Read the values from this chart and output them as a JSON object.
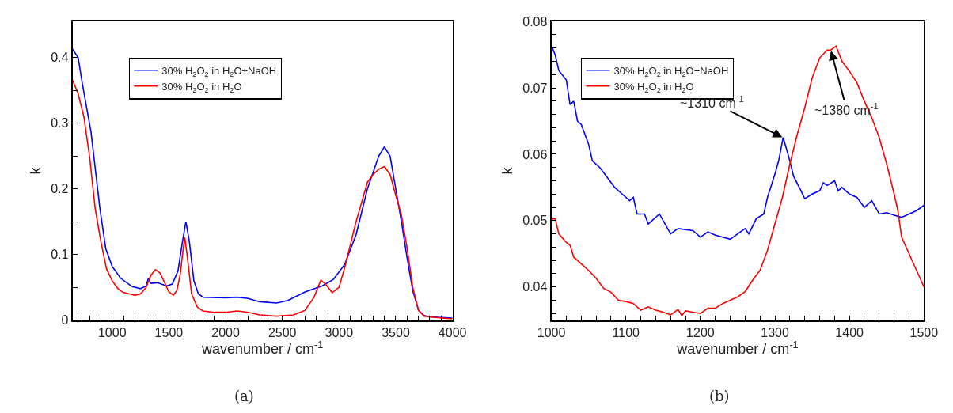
{
  "chart_data": [
    {
      "type": "line",
      "xlabel": "wavenumber / cm$^{-1}$",
      "ylabel": "k",
      "legend": "top",
      "xlim": [
        650,
        4000
      ],
      "ylim": [
        0,
        0.455
      ],
      "xticks": [
        {
          "value": 700,
          "label": null
        },
        {
          "value": 800,
          "label": null
        },
        {
          "value": 900,
          "label": null
        },
        1000,
        {
          "value": 1100,
          "label": null
        },
        {
          "value": 1200,
          "label": null
        },
        {
          "value": 1300,
          "label": null
        },
        {
          "value": 1400,
          "label": null
        },
        1500,
        {
          "value": 1600,
          "label": null
        },
        {
          "value": 1700,
          "label": null
        },
        {
          "value": 1800,
          "label": null
        },
        {
          "value": 1900,
          "label": null
        },
        2000,
        {
          "value": 2100,
          "label": null
        },
        {
          "value": 2200,
          "label": null
        },
        {
          "value": 2300,
          "label": null
        },
        {
          "value": 2400,
          "label": null
        },
        2500,
        {
          "value": 2600,
          "label": null
        },
        {
          "value": 2700,
          "label": null
        },
        {
          "value": 2800,
          "label": null
        },
        {
          "value": 2900,
          "label": null
        },
        3000,
        {
          "value": 3100,
          "label": null
        },
        {
          "value": 3200,
          "label": null
        },
        {
          "value": 3300,
          "label": null
        },
        {
          "value": 3400,
          "label": null
        },
        3500,
        {
          "value": 3600,
          "label": null
        },
        {
          "value": 3700,
          "label": null
        },
        {
          "value": 3800,
          "label": null
        },
        {
          "value": 3900,
          "label": null
        },
        4000
      ],
      "yticks": [
        0,
        {
          "value": 0.05,
          "label": null
        },
        0.1,
        {
          "value": 0.15,
          "label": null
        },
        0.2,
        {
          "value": 0.25,
          "label": null
        },
        0.3,
        {
          "value": 0.35,
          "label": null
        },
        0.4
      ],
      "annotations": [
        "(a)"
      ],
      "series": [
        {
          "name": "30% H$_{2}$O$_{2}$ in H$_{2}$O+NaOH",
          "color": "#0000ff",
          "x": [
            650,
            700,
            735,
            813,
            891,
            943,
            1000,
            1073,
            1177,
            1250,
            1300,
            1317,
            1340,
            1400,
            1480,
            1530,
            1580,
            1620,
            1650,
            1680,
            1720,
            1760,
            1800,
            2000,
            2100,
            2200,
            2300,
            2450,
            2550,
            2700,
            2850,
            2950,
            3050,
            3150,
            3250,
            3300,
            3350,
            3400,
            3450,
            3500,
            3550,
            3600,
            3650,
            3700,
            3750,
            3800,
            3900,
            4000
          ],
          "values": [
            0.413,
            0.4,
            0.362,
            0.287,
            0.171,
            0.109,
            0.082,
            0.064,
            0.051,
            0.048,
            0.052,
            0.063,
            0.056,
            0.057,
            0.052,
            0.055,
            0.075,
            0.12,
            0.15,
            0.12,
            0.06,
            0.04,
            0.035,
            0.034,
            0.035,
            0.033,
            0.028,
            0.026,
            0.03,
            0.043,
            0.052,
            0.062,
            0.085,
            0.13,
            0.2,
            0.225,
            0.25,
            0.264,
            0.25,
            0.2,
            0.15,
            0.095,
            0.045,
            0.015,
            0.007,
            0.005,
            0.004,
            0.003
          ]
        },
        {
          "name": "30% H$_{2}$O$_{2}$ in H$_{2}$O",
          "color": "#ff0000",
          "x": [
            650,
            700,
            750,
            800,
            850,
            880,
            900,
            950,
            1000,
            1050,
            1100,
            1200,
            1250,
            1300,
            1340,
            1380,
            1420,
            1460,
            1500,
            1540,
            1570,
            1600,
            1620,
            1640,
            1660,
            1700,
            1750,
            1800,
            1900,
            2000,
            2100,
            2200,
            2300,
            2450,
            2600,
            2700,
            2780,
            2840,
            2880,
            2940,
            3000,
            3050,
            3150,
            3250,
            3300,
            3350,
            3400,
            3450,
            3500,
            3550,
            3600,
            3650,
            3700,
            3750,
            3850,
            4000
          ],
          "values": [
            0.366,
            0.345,
            0.31,
            0.25,
            0.17,
            0.14,
            0.12,
            0.078,
            0.06,
            0.048,
            0.042,
            0.038,
            0.04,
            0.05,
            0.068,
            0.077,
            0.072,
            0.058,
            0.043,
            0.038,
            0.045,
            0.07,
            0.1,
            0.126,
            0.1,
            0.04,
            0.02,
            0.014,
            0.012,
            0.012,
            0.014,
            0.012,
            0.008,
            0.006,
            0.008,
            0.015,
            0.035,
            0.061,
            0.055,
            0.042,
            0.05,
            0.08,
            0.15,
            0.21,
            0.222,
            0.23,
            0.234,
            0.222,
            0.19,
            0.16,
            0.11,
            0.05,
            0.015,
            0.006,
            0.004,
            0.002
          ]
        }
      ]
    },
    {
      "type": "line",
      "xlabel": "wavenumber / cm$^{-1}$",
      "ylabel": "k",
      "legend": "top left",
      "xlim": [
        1000,
        1500
      ],
      "ylim": [
        0.035,
        0.08
      ],
      "xticks": [
        1000,
        {
          "value": 1020,
          "label": null
        },
        {
          "value": 1040,
          "label": null
        },
        {
          "value": 1060,
          "label": null
        },
        {
          "value": 1080,
          "label": null
        },
        1100,
        {
          "value": 1120,
          "label": null
        },
        {
          "value": 1140,
          "label": null
        },
        {
          "value": 1160,
          "label": null
        },
        {
          "value": 1180,
          "label": null
        },
        1200,
        {
          "value": 1220,
          "label": null
        },
        {
          "value": 1240,
          "label": null
        },
        {
          "value": 1260,
          "label": null
        },
        {
          "value": 1280,
          "label": null
        },
        1300,
        {
          "value": 1320,
          "label": null
        },
        {
          "value": 1340,
          "label": null
        },
        {
          "value": 1360,
          "label": null
        },
        {
          "value": 1380,
          "label": null
        },
        1400,
        {
          "value": 1420,
          "label": null
        },
        {
          "value": 1440,
          "label": null
        },
        {
          "value": 1460,
          "label": null
        },
        {
          "value": 1480,
          "label": null
        },
        1500
      ],
      "yticks": [
        {
          "value": 0.036,
          "label": null
        },
        {
          "value": 0.038,
          "label": null
        },
        0.04,
        {
          "value": 0.042,
          "label": null
        },
        {
          "value": 0.044,
          "label": null
        },
        {
          "value": 0.046,
          "label": null
        },
        {
          "value": 0.048,
          "label": null
        },
        0.05,
        {
          "value": 0.052,
          "label": null
        },
        {
          "value": 0.054,
          "label": null
        },
        {
          "value": 0.056,
          "label": null
        },
        {
          "value": 0.058,
          "label": null
        },
        0.06,
        {
          "value": 0.062,
          "label": null
        },
        {
          "value": 0.064,
          "label": null
        },
        {
          "value": 0.066,
          "label": null
        },
        {
          "value": 0.068,
          "label": null
        },
        0.07,
        {
          "value": 0.072,
          "label": null
        },
        {
          "value": 0.074,
          "label": null
        },
        {
          "value": 0.076,
          "label": null
        },
        {
          "value": 0.078,
          "label": null
        },
        0.08
      ],
      "annotations": [
        {
          "text": "~1310 cm$^{-1}$",
          "x": 1311,
          "y": 0.0625
        },
        {
          "text": "~1380 cm$^{-1}$",
          "x": 1375,
          "y": 0.0757
        },
        "(b)"
      ],
      "series": [
        {
          "name": "30% H$_{2}$O$_{2}$ in H$_{2}$O+NaOH",
          "color": "#0000ff",
          "x": [
            1000,
            1005,
            1010,
            1020,
            1025,
            1030,
            1035,
            1040,
            1050,
            1055,
            1065,
            1075,
            1085,
            1095,
            1105,
            1110,
            1115,
            1125,
            1130,
            1145,
            1160,
            1170,
            1190,
            1200,
            1210,
            1220,
            1230,
            1240,
            1250,
            1260,
            1265,
            1275,
            1285,
            1290,
            1300,
            1305,
            1311,
            1315,
            1320,
            1325,
            1335,
            1340,
            1350,
            1360,
            1365,
            1370,
            1380,
            1385,
            1390,
            1400,
            1410,
            1420,
            1430,
            1440,
            1450,
            1460,
            1470,
            1480,
            1490,
            1500
          ],
          "values": [
            0.0764,
            0.075,
            0.0726,
            0.0712,
            0.0675,
            0.068,
            0.065,
            0.0645,
            0.0615,
            0.059,
            0.058,
            0.0565,
            0.055,
            0.054,
            0.053,
            0.0535,
            0.051,
            0.051,
            0.0495,
            0.051,
            0.048,
            0.0488,
            0.0485,
            0.0475,
            0.0483,
            0.0478,
            0.0475,
            0.0472,
            0.048,
            0.0488,
            0.048,
            0.0503,
            0.051,
            0.0535,
            0.057,
            0.059,
            0.0625,
            0.061,
            0.059,
            0.0567,
            0.0545,
            0.0533,
            0.054,
            0.0545,
            0.0557,
            0.0553,
            0.056,
            0.0545,
            0.055,
            0.054,
            0.0535,
            0.052,
            0.053,
            0.051,
            0.0512,
            0.0508,
            0.0505,
            0.051,
            0.0515,
            0.0523
          ]
        },
        {
          "name": "30% H$_{2}$O$_{2}$ in H$_{2}$O",
          "color": "#ff0000",
          "x": [
            1000,
            1005,
            1010,
            1020,
            1025,
            1030,
            1040,
            1050,
            1060,
            1070,
            1080,
            1090,
            1100,
            1110,
            1120,
            1130,
            1140,
            1150,
            1160,
            1170,
            1175,
            1180,
            1190,
            1200,
            1210,
            1220,
            1230,
            1240,
            1250,
            1260,
            1270,
            1280,
            1290,
            1300,
            1310,
            1320,
            1330,
            1340,
            1350,
            1360,
            1370,
            1375,
            1382,
            1390,
            1400,
            1410,
            1420,
            1430,
            1440,
            1450,
            1460,
            1465,
            1470,
            1480,
            1490,
            1500
          ],
          "values": [
            0.0502,
            0.0503,
            0.048,
            0.0467,
            0.0463,
            0.0445,
            0.0435,
            0.0425,
            0.0413,
            0.0398,
            0.0392,
            0.038,
            0.0378,
            0.0375,
            0.0365,
            0.037,
            0.0365,
            0.0362,
            0.0358,
            0.0366,
            0.0357,
            0.0364,
            0.0362,
            0.036,
            0.0368,
            0.0368,
            0.0375,
            0.038,
            0.0385,
            0.0393,
            0.041,
            0.0425,
            0.0455,
            0.0495,
            0.0535,
            0.0585,
            0.063,
            0.067,
            0.0715,
            0.0745,
            0.0757,
            0.0757,
            0.0763,
            0.074,
            0.0725,
            0.0708,
            0.068,
            0.0655,
            0.0625,
            0.0585,
            0.054,
            0.0515,
            0.0475,
            0.045,
            0.0425,
            0.04
          ]
        }
      ]
    }
  ]
}
